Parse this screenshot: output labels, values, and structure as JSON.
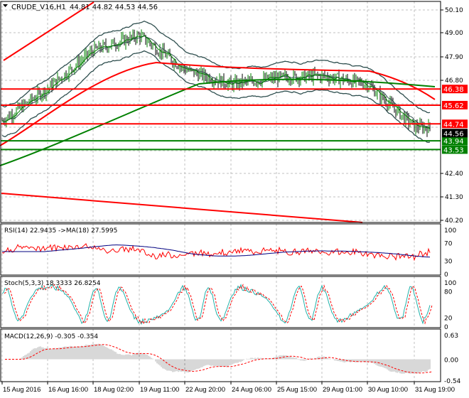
{
  "header": {
    "symbol": "CRUDE_V16,H1",
    "ohlc": "44.81 44.82 44.53 44.56"
  },
  "chart_data": {
    "type": "candlestick",
    "x_labels": [
      "15 Aug 2016",
      "16 Aug 16:00",
      "18 Aug 02:00",
      "19 Aug 11:00",
      "22 Aug 20:00",
      "24 Aug 06:00",
      "25 Aug 15:00",
      "29 Aug 01:00",
      "30 Aug 10:00",
      "31 Aug 19:00"
    ],
    "approx_close_at_labels": [
      44.9,
      46.4,
      48.2,
      48.9,
      47.3,
      46.6,
      46.9,
      47.0,
      46.6,
      44.6
    ],
    "last_price": "44.56",
    "y_ticks": [
      "50.10",
      "49.00",
      "47.90",
      "46.80",
      "42.40",
      "41.30",
      "40.20"
    ],
    "ylim": [
      40.2,
      50.1
    ],
    "levels": [
      {
        "value": "46.38",
        "color": "#ff0000"
      },
      {
        "value": "45.62",
        "color": "#ff0000"
      },
      {
        "value": "44.74",
        "color": "#ff0000"
      },
      {
        "value": "43.94",
        "color": "#008000"
      },
      {
        "value": "43.53",
        "color": "#008000"
      }
    ],
    "grid": true
  },
  "rsi": {
    "label": "RSI(14) 22.9435  ->MA(18) 27.5995",
    "ticks": [
      "100",
      "70",
      "30",
      "0"
    ]
  },
  "stoch": {
    "label": "Stoch(5,3,3) 18.3333 26.8254",
    "ticks": [
      "100",
      "80",
      "20",
      "0"
    ]
  },
  "macd": {
    "label": "MACD(12,26,9) -0.305 -0.354",
    "ticks": [
      "0.63",
      "0.00",
      "-0.54"
    ]
  },
  "colors": {
    "bull": "#008000",
    "bear": "#ff0000",
    "up": "#ff0000",
    "ma200": "#008000",
    "bands": "#2f4f4f",
    "rsi": "#ff0000",
    "rsi_ma": "#000080",
    "stoch": "#20b2aa"
  }
}
